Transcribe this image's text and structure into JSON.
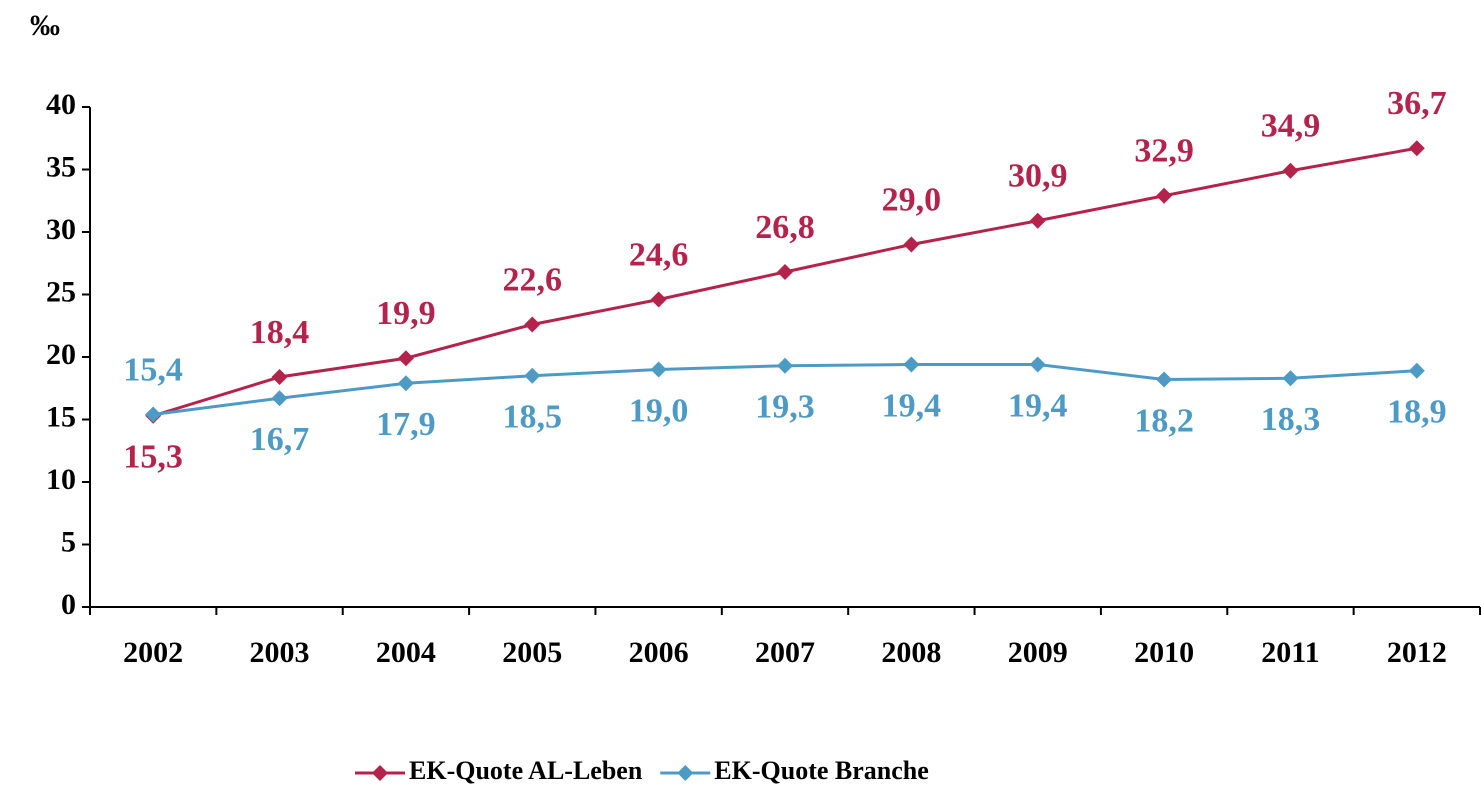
{
  "chart_data": {
    "type": "line",
    "y_label": "‰",
    "categories": [
      "2002",
      "2003",
      "2004",
      "2005",
      "2006",
      "2007",
      "2008",
      "2009",
      "2010",
      "2011",
      "2012"
    ],
    "series": [
      {
        "name": "EK-Quote AL-Leben",
        "color": "#b3234b",
        "values": [
          15.3,
          18.4,
          19.9,
          22.6,
          24.6,
          26.8,
          29.0,
          30.9,
          32.9,
          34.9,
          36.7
        ],
        "value_labels": [
          "15,3",
          "18,4",
          "19,9",
          "22,6",
          "24,6",
          "26,8",
          "29,0",
          "30,9",
          "32,9",
          "34,9",
          "36,7"
        ]
      },
      {
        "name": "EK-Quote Branche",
        "color": "#4d9bc4",
        "values": [
          15.4,
          16.7,
          17.9,
          18.5,
          19.0,
          19.3,
          19.4,
          19.4,
          18.2,
          18.3,
          18.9
        ],
        "value_labels": [
          "15,4",
          "16,7",
          "17,9",
          "18,5",
          "19,0",
          "19,3",
          "19,4",
          "19,4",
          "18,2",
          "18,3",
          "18,9"
        ]
      }
    ],
    "ylim": [
      0,
      40
    ],
    "yticks": [
      0,
      5,
      10,
      15,
      20,
      25,
      30,
      35,
      40
    ],
    "legend": "bottom"
  }
}
